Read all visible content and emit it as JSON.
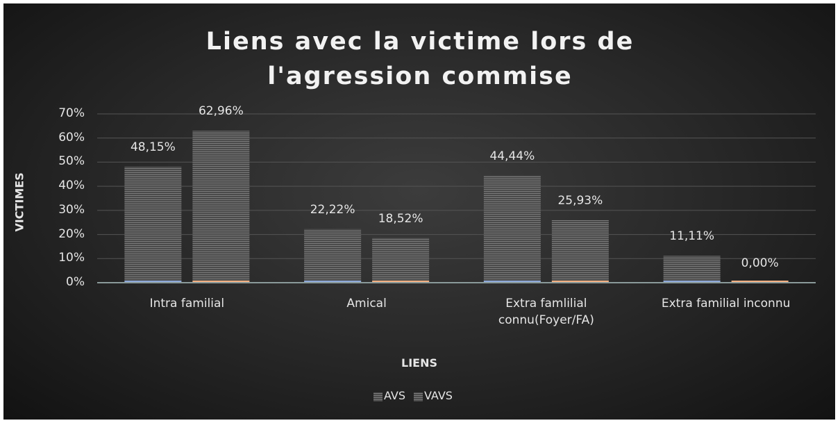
{
  "chart_data": {
    "type": "bar",
    "title": "Liens avec la victime lors de l'agression commise",
    "x_label": "LIENS",
    "y_label": "VICTIMES",
    "categories": [
      "Intra familial",
      "Amical",
      "Extra famlilial connu(Foyer/FA)",
      "Extra familial inconnu"
    ],
    "series": [
      {
        "name": "AVS",
        "color": "#8faadc",
        "values": [
          48.15,
          22.22,
          44.44,
          11.11
        ],
        "value_labels": [
          "48,15%",
          "22,22%",
          "44,44%",
          "11,11%"
        ]
      },
      {
        "name": "VAVS",
        "color": "#f4b183",
        "values": [
          62.96,
          18.52,
          25.93,
          0
        ],
        "value_labels": [
          "62,96%",
          "18,52%",
          "25,93%",
          "0,00%"
        ]
      }
    ],
    "ylim": [
      0,
      70
    ],
    "yticks": [
      {
        "value": 0,
        "label": "0%"
      },
      {
        "value": 10,
        "label": "10%"
      },
      {
        "value": 20,
        "label": "20%"
      },
      {
        "value": 30,
        "label": "30%"
      },
      {
        "value": 40,
        "label": "40%"
      },
      {
        "value": 50,
        "label": "50%"
      },
      {
        "value": 60,
        "label": "60%"
      },
      {
        "value": 70,
        "label": "70%"
      }
    ],
    "grid": true,
    "legend": "bottom"
  }
}
